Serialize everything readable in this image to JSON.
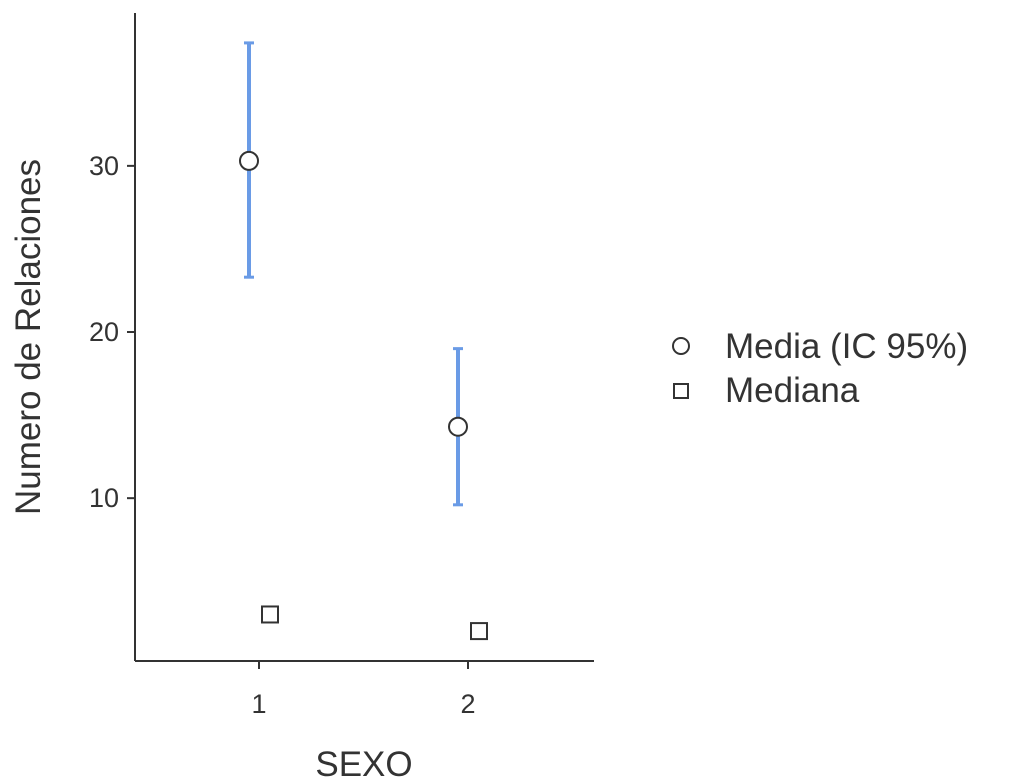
{
  "chart_data": {
    "type": "scatter",
    "xlabel": "SEXO",
    "ylabel": "Numero de Relaciones",
    "categories": [
      "1",
      "2"
    ],
    "yticks": [
      10,
      20,
      30
    ],
    "ylim": [
      0.2,
      39.2
    ],
    "grid": false,
    "legend_position": "right",
    "series": [
      {
        "name": "Media (IC 95%)",
        "marker": "circle",
        "values": [
          30.3,
          14.3
        ],
        "ci_lower": [
          23.3,
          9.6
        ],
        "ci_upper": [
          37.4,
          19.0
        ]
      },
      {
        "name": "Mediana",
        "marker": "square",
        "values": [
          3,
          2
        ]
      }
    ],
    "colors": {
      "error_bar": "#6a9be6",
      "marker_stroke": "#333333",
      "marker_fill": "#ffffff",
      "axis": "#333333",
      "text": "#333333"
    }
  }
}
